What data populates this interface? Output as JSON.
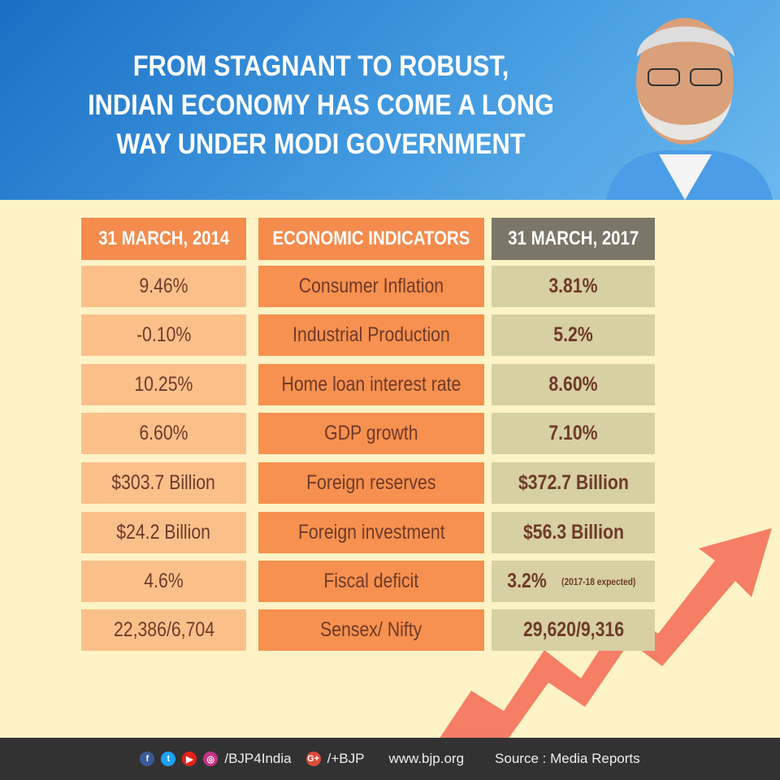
{
  "header": {
    "title_lines": [
      "FROM STAGNANT TO ROBUST,",
      "INDIAN ECONOMY HAS COME A LONG",
      "WAY UNDER MODI GOVERNMENT"
    ]
  },
  "table": {
    "columns": [
      "31 MARCH, 2014",
      "ECONOMIC INDICATORS",
      "31 MARCH, 2017"
    ],
    "rows": [
      {
        "before": "9.46%",
        "indicator": "Consumer Inflation",
        "after": "3.81%"
      },
      {
        "before": "-0.10%",
        "indicator": "Industrial Production",
        "after": "5.2%"
      },
      {
        "before": "10.25%",
        "indicator": "Home loan interest rate",
        "after": "8.60%"
      },
      {
        "before": "6.60%",
        "indicator": "GDP growth",
        "after": "7.10%"
      },
      {
        "before": "$303.7 Billion",
        "indicator": "Foreign reserves",
        "after": "$372.7 Billion"
      },
      {
        "before": "$24.2 Billion",
        "indicator": "Foreign investment",
        "after": "$56.3 Billion"
      },
      {
        "before": "4.6%",
        "indicator": "Fiscal deficit",
        "after": "3.2%",
        "after_note": "(2017-18 expected)"
      },
      {
        "before": "22,386/6,704",
        "indicator": "Sensex/ Nifty",
        "after": "29,620/9,316"
      }
    ]
  },
  "footer": {
    "social_handle": "/BJP4India",
    "gplus_handle": "/+BJP",
    "website": "www.bjp.org",
    "source": "Source : Media Reports"
  },
  "colors": {
    "banner": "#2f86d6",
    "background": "#fdf3c6",
    "col_2014": "#fbc08a",
    "col_indicator": "#f7914f",
    "col_2017": "#d7d0a2",
    "header_2017": "#7b7668",
    "text": "#6e3a2a",
    "footer": "#333232"
  }
}
